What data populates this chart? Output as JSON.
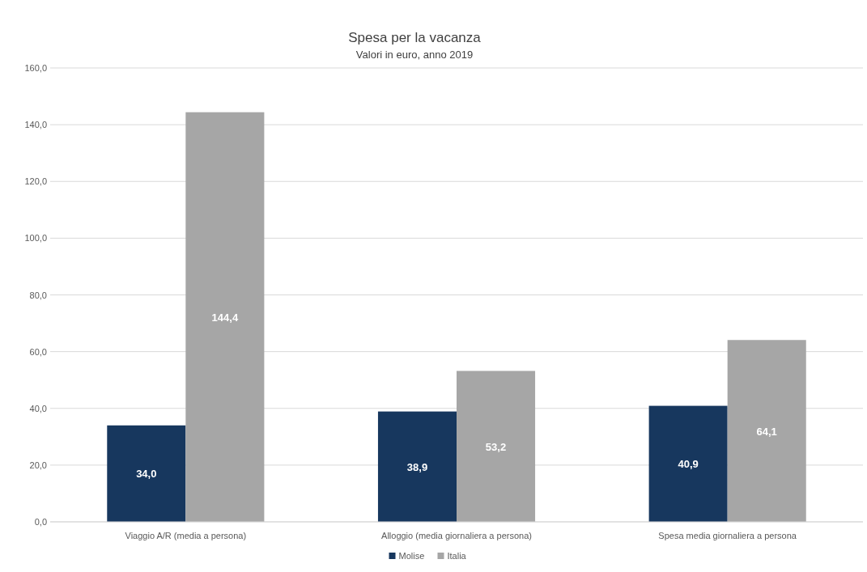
{
  "chart_data": {
    "type": "bar",
    "title": "Spesa per la vacanza",
    "subtitle": "Valori in euro, anno 2019",
    "categories": [
      "Viaggio A/R (media a persona)",
      "Alloggio (media giornaliera a persona)",
      "Spesa media giornaliera a persona"
    ],
    "series": [
      {
        "name": "Molise",
        "color": "#17375e",
        "values": [
          34.0,
          38.9,
          40.9
        ],
        "value_labels": [
          "34,0",
          "38,9",
          "40,9"
        ]
      },
      {
        "name": "Italia",
        "color": "#a6a6a6",
        "values": [
          144.4,
          53.2,
          64.1
        ],
        "value_labels": [
          "144,4",
          "53,2",
          "64,1"
        ]
      }
    ],
    "ylim": [
      0,
      160
    ],
    "yticks": [
      {
        "value": 0,
        "label": "0,0"
      },
      {
        "value": 20,
        "label": "20,0"
      },
      {
        "value": 40,
        "label": "40,0"
      },
      {
        "value": 60,
        "label": "60,0"
      },
      {
        "value": 80,
        "label": "80,0"
      },
      {
        "value": 100,
        "label": "100,0"
      },
      {
        "value": 120,
        "label": "120,0"
      },
      {
        "value": 140,
        "label": "140,0"
      },
      {
        "value": 160,
        "label": "160,0"
      }
    ],
    "grid": "y",
    "legend": "bottom"
  }
}
